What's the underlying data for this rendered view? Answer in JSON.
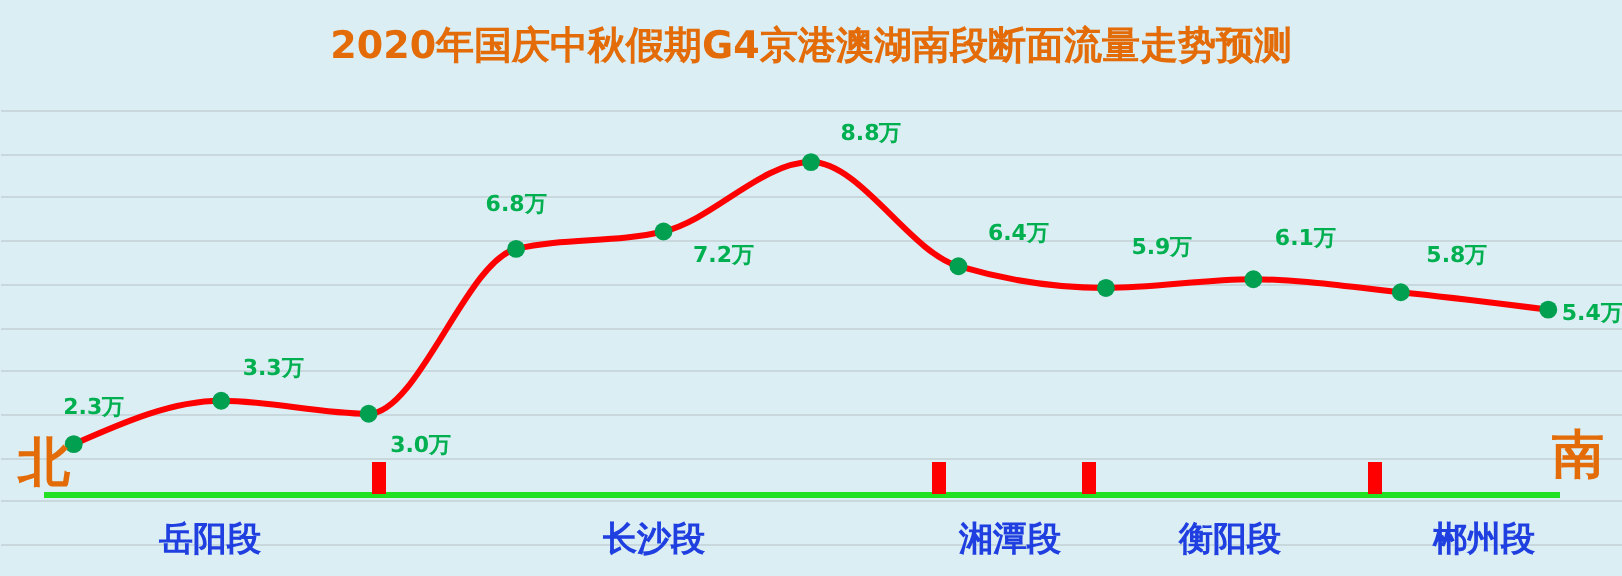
{
  "chart_data": {
    "type": "line",
    "title": "2020年国庆中秋假期G4京港澳湖南段断面流量走势预测",
    "categories": [
      null,
      null,
      null,
      null,
      null,
      null,
      null,
      null,
      null,
      null,
      null
    ],
    "series": [
      {
        "color": "#ff0000",
        "values": [
          2.3,
          3.3,
          3.0,
          6.8,
          7.2,
          8.8,
          6.4,
          5.9,
          6.1,
          5.8,
          5.4
        ],
        "value_labels": [
          "2.3万",
          "3.3万",
          "3.0万",
          "6.8万",
          "7.2万",
          "8.8万",
          "6.4万",
          "5.9万",
          "6.1万",
          "5.8万",
          "5.4万"
        ]
      }
    ],
    "ylim": [
      0,
      10
    ],
    "grid": "y",
    "tick_labels": false,
    "marker": "circle",
    "line_style": "solid",
    "annotations": [
      "北",
      "南",
      "岳阳段",
      "长沙段",
      "湘潭段",
      "衡阳段",
      "郴州段"
    ]
  }
}
